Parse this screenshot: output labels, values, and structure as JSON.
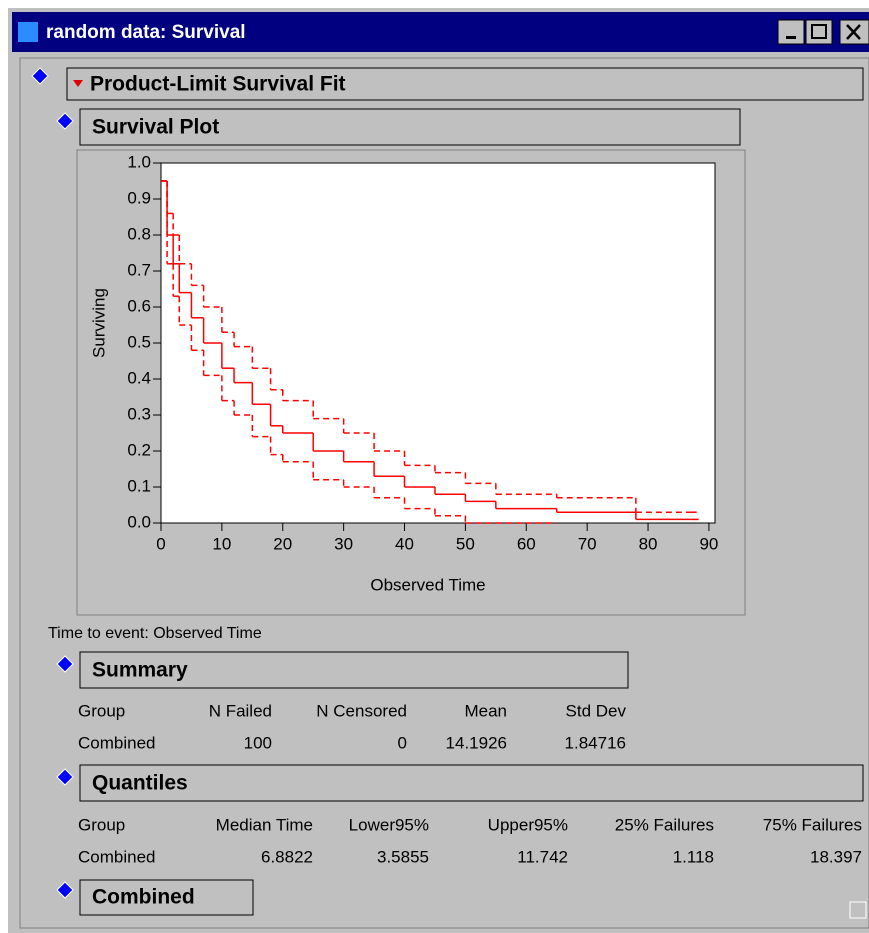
{
  "window": {
    "title": "random data: Survival"
  },
  "report": {
    "title": "Product-Limit Survival Fit"
  },
  "plot_section": {
    "title": "Survival Plot"
  },
  "chart_data": {
    "type": "step",
    "xlabel": "Observed Time",
    "ylabel": "Surviving",
    "xlim": [
      0,
      91
    ],
    "ylim": [
      0,
      1
    ],
    "xticks": [
      0,
      10,
      20,
      30,
      40,
      50,
      60,
      70,
      80,
      90
    ],
    "yticks": [
      {
        "value": 0,
        "label": "0.0"
      },
      {
        "value": 0.1,
        "label": "0.1"
      },
      {
        "value": 0.2,
        "label": "0.2"
      },
      {
        "value": 0.3,
        "label": "0.3"
      },
      {
        "value": 0.4,
        "label": "0.4"
      },
      {
        "value": 0.5,
        "label": "0.5"
      },
      {
        "value": 0.6,
        "label": "0.6"
      },
      {
        "value": 0.7,
        "label": "0.7"
      },
      {
        "value": 0.8,
        "label": "0.8"
      },
      {
        "value": 0.9,
        "label": "0.9"
      },
      {
        "value": 1,
        "label": "1.0"
      }
    ],
    "x": [
      0,
      1,
      2,
      3,
      5,
      7,
      10,
      12,
      15,
      18,
      20,
      25,
      30,
      35,
      40,
      45,
      50,
      55,
      65,
      78,
      87
    ],
    "series": [
      {
        "color": "#ff0000",
        "dashed": false,
        "values": [
          0.95,
          0.8,
          0.72,
          0.64,
          0.57,
          0.5,
          0.43,
          0.39,
          0.33,
          0.27,
          0.25,
          0.2,
          0.17,
          0.13,
          0.1,
          0.08,
          0.06,
          0.04,
          0.03,
          0.01,
          0.01
        ]
      },
      {
        "color": "#ff0000",
        "dashed": true,
        "values": [
          0.95,
          0.86,
          0.8,
          0.72,
          0.66,
          0.6,
          0.53,
          0.49,
          0.43,
          0.37,
          0.34,
          0.29,
          0.25,
          0.2,
          0.16,
          0.14,
          0.11,
          0.08,
          0.07,
          0.03,
          0.03
        ]
      },
      {
        "color": "#ff0000",
        "dashed": true,
        "values": [
          0.95,
          0.72,
          0.63,
          0.55,
          0.48,
          0.41,
          0.34,
          0.3,
          0.24,
          0.19,
          0.17,
          0.12,
          0.1,
          0.07,
          0.04,
          0.02,
          0.0,
          0.0,
          null,
          null,
          null
        ]
      }
    ]
  },
  "note": "Time to event: Observed Time",
  "summary": {
    "title": "Summary",
    "columns": [
      "Group",
      "N Failed",
      "N Censored",
      "Mean",
      "Std Dev"
    ],
    "rows": [
      [
        "Combined",
        100,
        0,
        14.1926,
        1.84716
      ]
    ]
  },
  "quantiles": {
    "title": "Quantiles",
    "columns": [
      "Group",
      "Median Time",
      "Lower95%",
      "Upper95%",
      "25% Failures",
      "75% Failures"
    ],
    "rows": [
      [
        "Combined",
        6.8822,
        3.5855,
        11.742,
        1.118,
        18.397
      ]
    ]
  },
  "combined": {
    "title": "Combined"
  }
}
